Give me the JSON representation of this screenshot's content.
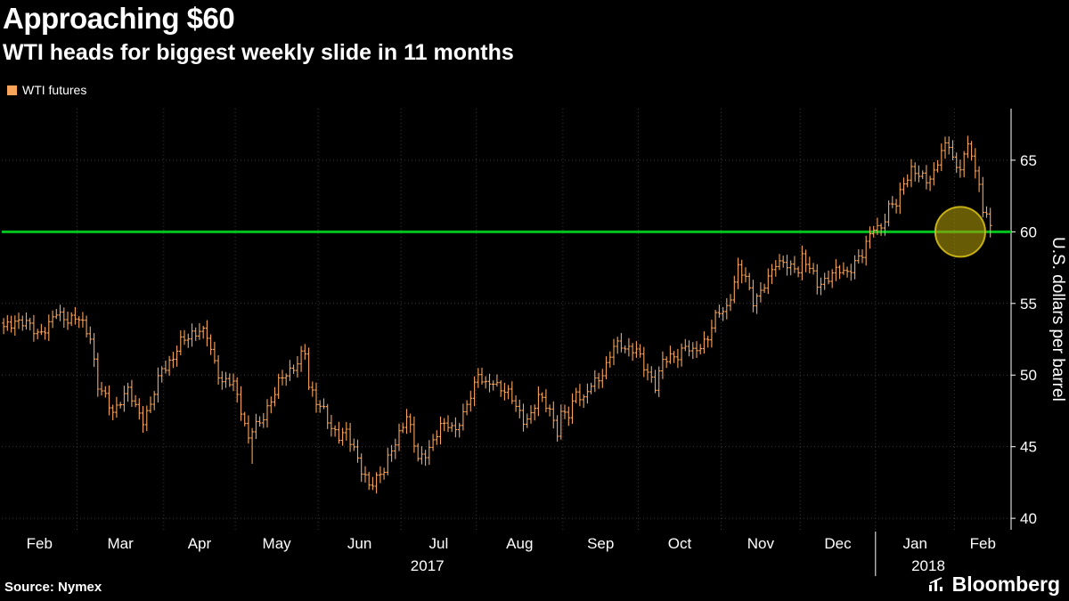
{
  "header": {
    "title": "Approaching $60",
    "subtitle": "WTI heads for biggest weekly slide in 11 months"
  },
  "legend": {
    "label": "WTI futures",
    "swatch_color": "#f9a45b"
  },
  "footer": {
    "source": "Source: Nymex",
    "brand": "Bloomberg"
  },
  "colors": {
    "background": "#000000",
    "text": "#ffffff",
    "grid": "#3b3b3b",
    "axis": "#ffffff"
  },
  "chart_data": {
    "type": "ohlc",
    "title": "Approaching $60",
    "subtitle": "WTI heads for biggest weekly slide in 11 months",
    "ylabel": "U.S. dollars per barrel",
    "legend_position": "top-left",
    "grid": "dotted",
    "series": [
      {
        "name": "WTI futures",
        "color": "#f9a45b"
      }
    ],
    "yticks": [
      40,
      45,
      50,
      55,
      60,
      65
    ],
    "ylim": [
      39.2,
      68.6
    ],
    "x_months": [
      "Feb",
      "Mar",
      "Apr",
      "May",
      "Jun",
      "Jul",
      "Aug",
      "Sep",
      "Oct",
      "Nov",
      "Dec",
      "Jan",
      "Feb"
    ],
    "month_start_days": [
      0,
      20,
      43,
      62,
      84,
      106,
      126,
      149,
      169,
      191,
      212,
      232,
      253
    ],
    "n_days": 268,
    "year_labels": [
      {
        "label": "2017",
        "day": 113
      },
      {
        "label": "2018",
        "day": 246
      }
    ],
    "year_separator_day": 232,
    "reference_line": {
      "value": 60,
      "color": "#00c31e",
      "width": 3
    },
    "highlight_circle": {
      "day": 254,
      "value": 60.0,
      "radius_px": 28,
      "fill": "rgba(173,152,10,0.60)",
      "stroke": "rgba(205,182,20,0.95)"
    },
    "anchors": [
      [
        0,
        53.2
      ],
      [
        3,
        53.9
      ],
      [
        6,
        53.5
      ],
      [
        9,
        53.0
      ],
      [
        12,
        53.4
      ],
      [
        14,
        54.3
      ],
      [
        17,
        54.0
      ],
      [
        20,
        53.8
      ],
      [
        23,
        52.8
      ],
      [
        25,
        49.2
      ],
      [
        27,
        48.3
      ],
      [
        29,
        47.5
      ],
      [
        31,
        48.3
      ],
      [
        33,
        48.8
      ],
      [
        35,
        47.8
      ],
      [
        37,
        47.0
      ],
      [
        39,
        47.8
      ],
      [
        42,
        50.5
      ],
      [
        45,
        51.2
      ],
      [
        47,
        52.2
      ],
      [
        50,
        53.0
      ],
      [
        52,
        53.1
      ],
      [
        54,
        52.6
      ],
      [
        56,
        50.9
      ],
      [
        58,
        49.6
      ],
      [
        61,
        49.3
      ],
      [
        63,
        47.7
      ],
      [
        65,
        45.6
      ],
      [
        66,
        46.2
      ],
      [
        68,
        46.5
      ],
      [
        70,
        47.8
      ],
      [
        73,
        49.4
      ],
      [
        76,
        50.3
      ],
      [
        79,
        51.4
      ],
      [
        80,
        51.5
      ],
      [
        81,
        49.0
      ],
      [
        83,
        48.3
      ],
      [
        85,
        47.7
      ],
      [
        87,
        46.0
      ],
      [
        89,
        45.7
      ],
      [
        91,
        46.3
      ],
      [
        93,
        44.7
      ],
      [
        95,
        43.2
      ],
      [
        97,
        42.5
      ],
      [
        99,
        42.8
      ],
      [
        101,
        43.2
      ],
      [
        103,
        44.9
      ],
      [
        105,
        46.0
      ],
      [
        107,
        47.0
      ],
      [
        109,
        45.2
      ],
      [
        110,
        44.3
      ],
      [
        112,
        44.6
      ],
      [
        114,
        45.1
      ],
      [
        116,
        46.5
      ],
      [
        118,
        46.8
      ],
      [
        120,
        46.0
      ],
      [
        122,
        47.1
      ],
      [
        124,
        48.8
      ],
      [
        126,
        50.1
      ],
      [
        128,
        49.1
      ],
      [
        130,
        49.6
      ],
      [
        132,
        49.2
      ],
      [
        134,
        48.6
      ],
      [
        136,
        47.8
      ],
      [
        138,
        47.0
      ],
      [
        140,
        47.1
      ],
      [
        142,
        48.4
      ],
      [
        144,
        48.1
      ],
      [
        145,
        47.7
      ],
      [
        147,
        45.9
      ],
      [
        148,
        47.1
      ],
      [
        150,
        47.3
      ],
      [
        152,
        49.0
      ],
      [
        154,
        48.1
      ],
      [
        156,
        49.3
      ],
      [
        158,
        49.9
      ],
      [
        160,
        50.6
      ],
      [
        162,
        51.9
      ],
      [
        164,
        52.2
      ],
      [
        166,
        51.9
      ],
      [
        168,
        51.6
      ],
      [
        170,
        50.6
      ],
      [
        172,
        49.9
      ],
      [
        173,
        49.3
      ],
      [
        175,
        50.8
      ],
      [
        177,
        51.3
      ],
      [
        179,
        51.5
      ],
      [
        181,
        51.9
      ],
      [
        183,
        51.5
      ],
      [
        185,
        52.2
      ],
      [
        187,
        52.6
      ],
      [
        189,
        53.9
      ],
      [
        190,
        54.4
      ],
      [
        192,
        54.8
      ],
      [
        193,
        55.6
      ],
      [
        195,
        57.3
      ],
      [
        197,
        56.8
      ],
      [
        199,
        55.3
      ],
      [
        201,
        55.7
      ],
      [
        203,
        56.6
      ],
      [
        205,
        58.0
      ],
      [
        207,
        57.9
      ],
      [
        209,
        57.3
      ],
      [
        211,
        57.4
      ],
      [
        212,
        58.4
      ],
      [
        214,
        57.6
      ],
      [
        216,
        56.1
      ],
      [
        218,
        56.6
      ],
      [
        220,
        57.3
      ],
      [
        222,
        57.2
      ],
      [
        224,
        57.0
      ],
      [
        226,
        58.1
      ],
      [
        228,
        58.4
      ],
      [
        230,
        59.6
      ],
      [
        231,
        60.4
      ],
      [
        233,
        60.4
      ],
      [
        235,
        61.6
      ],
      [
        237,
        61.9
      ],
      [
        239,
        63.6
      ],
      [
        241,
        64.3
      ],
      [
        243,
        63.8
      ],
      [
        245,
        63.7
      ],
      [
        247,
        64.2
      ],
      [
        249,
        65.5
      ],
      [
        251,
        66.1
      ],
      [
        253,
        64.5
      ],
      [
        254,
        64.7
      ],
      [
        256,
        65.8
      ],
      [
        257,
        65.4
      ],
      [
        258,
        64.1
      ],
      [
        259,
        63.4
      ],
      [
        260,
        61.8
      ],
      [
        261,
        61.1
      ],
      [
        262,
        60.3
      ]
    ],
    "wick_spikes": [
      {
        "day": 66,
        "low": 43.8
      },
      {
        "day": 251,
        "high": 66.66
      },
      {
        "day": 262,
        "low": 59.6
      }
    ]
  }
}
